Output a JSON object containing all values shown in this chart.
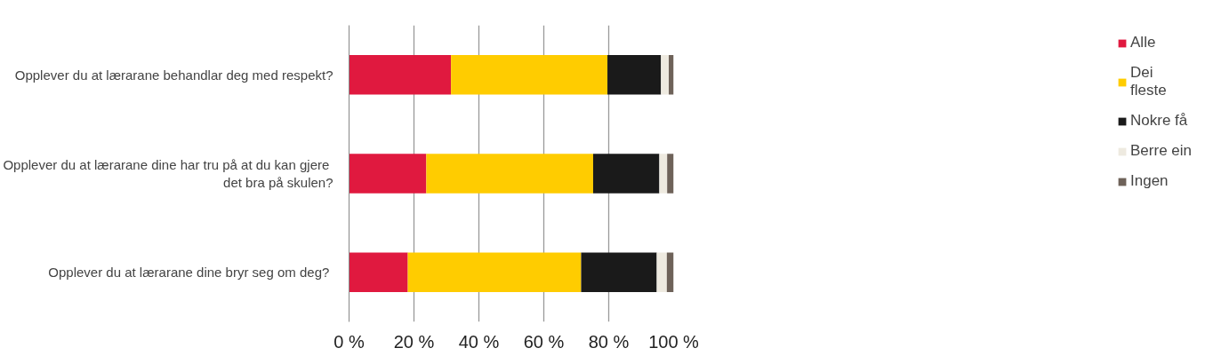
{
  "chart_data": {
    "type": "bar",
    "orientation": "horizontal",
    "stacked": true,
    "categories": [
      "Opplever du at lærarane behandlar deg med respekt?",
      "Opplever du at lærarane dine har tru på at du kan gjere det bra på skulen?",
      "Opplever du  at lærarane dine bryr seg om deg?"
    ],
    "series": [
      {
        "name": "Alle",
        "color": "#e0193f",
        "values": [
          31.4,
          23.8,
          18.1
        ]
      },
      {
        "name": "Dei fleste",
        "color": "#ffcc00",
        "values": [
          48.2,
          51.4,
          53.4
        ]
      },
      {
        "name": "Nokre få",
        "color": "#1a1a1a",
        "values": [
          16.5,
          20.4,
          23.3
        ]
      },
      {
        "name": "Berre ein",
        "color": "#eeeae0",
        "values": [
          2.4,
          2.4,
          3.1
        ]
      },
      {
        "name": "Ingen",
        "color": "#6e6259",
        "values": [
          1.5,
          2.0,
          2.1
        ]
      }
    ],
    "xlim": [
      0,
      100
    ],
    "xticks": [
      {
        "value": 0,
        "label": "0 %"
      },
      {
        "value": 20,
        "label": "20 %"
      },
      {
        "value": 40,
        "label": "40 %"
      },
      {
        "value": 60,
        "label": "60 %"
      },
      {
        "value": 80,
        "label": "80 %"
      },
      {
        "value": 100,
        "label": "100 %"
      }
    ],
    "grid": "x",
    "legend": "right"
  }
}
